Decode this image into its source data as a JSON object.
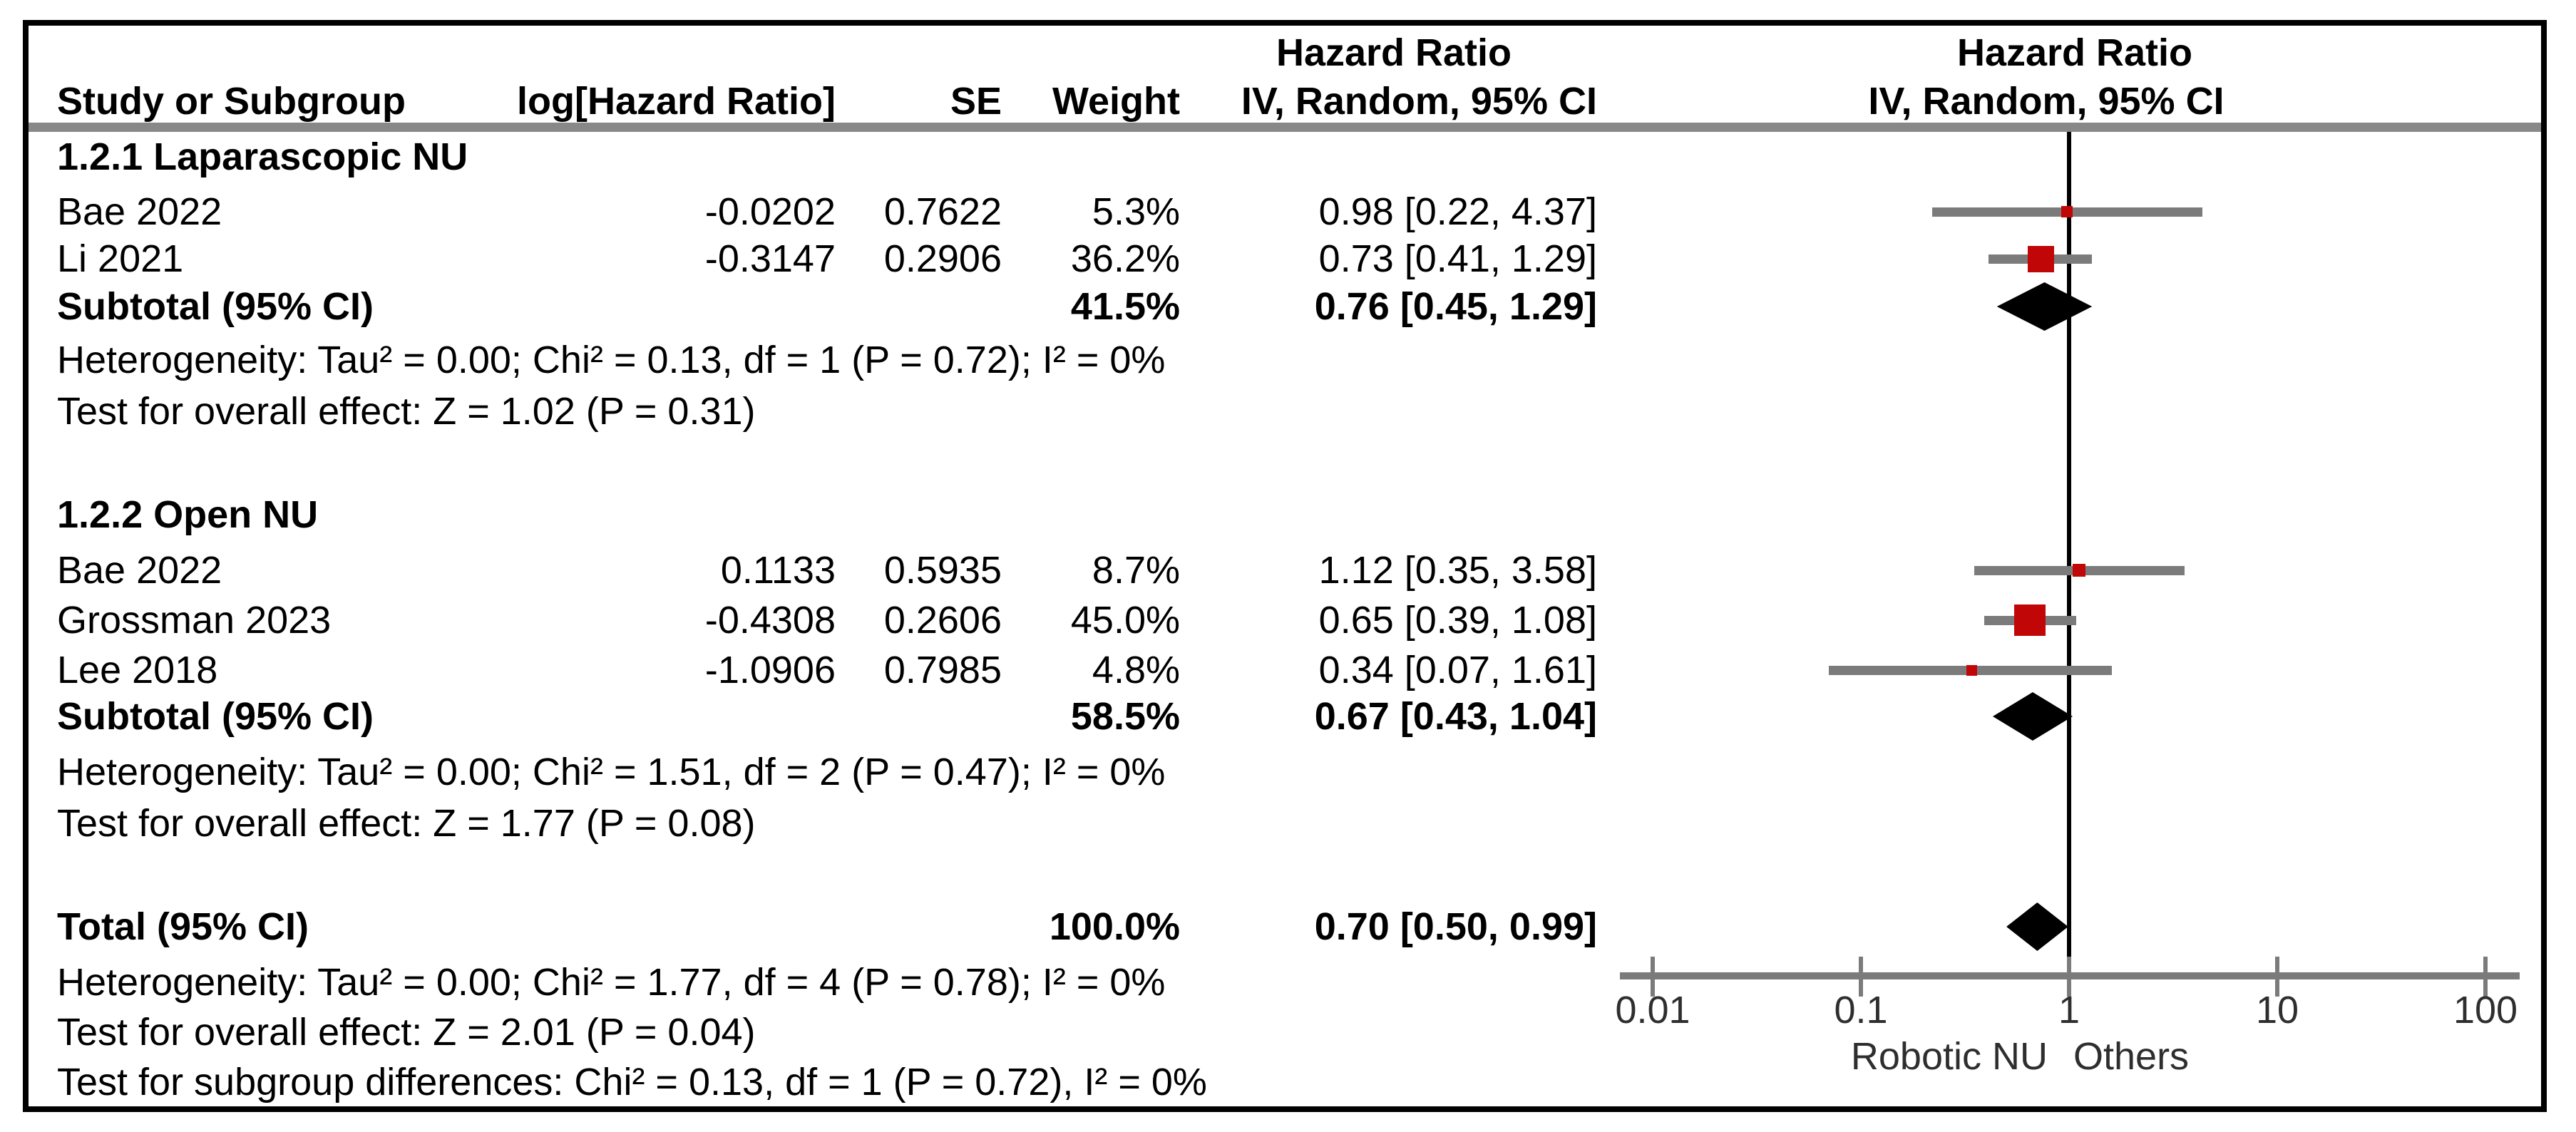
{
  "figure": {
    "header": {
      "stats_effect_title": "Hazard Ratio",
      "plot_effect_title": "Hazard Ratio",
      "col_study": "Study or Subgroup",
      "col_log_hr": "log[Hazard Ratio]",
      "col_se": "SE",
      "col_weight": "Weight",
      "col_ci": "IV, Random, 95% CI",
      "plot_ci": "IV, Random, 95% CI"
    },
    "sections": [
      {
        "title": "1.2.1 Laparascopic NU",
        "studies": [
          {
            "label": "Bae 2022",
            "log_hr": "-0.0202",
            "se": "0.7622",
            "weight": "5.3%",
            "ci": "0.98 [0.22, 4.37]"
          },
          {
            "label": "Li 2021",
            "log_hr": "-0.3147",
            "se": "0.2906",
            "weight": "36.2%",
            "ci": "0.73 [0.41, 1.29]"
          }
        ],
        "subtotal_label": "Subtotal (95% CI)",
        "subtotal_weight": "41.5%",
        "subtotal_ci": "0.76 [0.45, 1.29]",
        "heterogeneity": "Heterogeneity: Tau² = 0.00; Chi² = 0.13, df = 1 (P = 0.72); I² = 0%",
        "overall_effect": "Test for overall effect: Z = 1.02 (P = 0.31)"
      },
      {
        "title": "1.2.2 Open NU",
        "studies": [
          {
            "label": "Bae 2022",
            "log_hr": "0.1133",
            "se": "0.5935",
            "weight": "8.7%",
            "ci": "1.12 [0.35, 3.58]"
          },
          {
            "label": "Grossman 2023",
            "log_hr": "-0.4308",
            "se": "0.2606",
            "weight": "45.0%",
            "ci": "0.65 [0.39, 1.08]"
          },
          {
            "label": "Lee 2018",
            "log_hr": "-1.0906",
            "se": "0.7985",
            "weight": "4.8%",
            "ci": "0.34 [0.07, 1.61]"
          }
        ],
        "subtotal_label": "Subtotal (95% CI)",
        "subtotal_weight": "58.5%",
        "subtotal_ci": "0.67 [0.43, 1.04]",
        "heterogeneity": "Heterogeneity: Tau² = 0.00; Chi² = 1.51, df = 2 (P = 0.47); I² = 0%",
        "overall_effect": "Test for overall effect: Z = 1.77 (P = 0.08)"
      }
    ],
    "total": {
      "label": "Total (95% CI)",
      "weight": "100.0%",
      "ci": "0.70 [0.50, 0.99]",
      "heterogeneity": "Heterogeneity: Tau² = 0.00; Chi² = 1.77, df = 4 (P = 0.78); I² = 0%",
      "overall_effect": "Test for overall effect: Z = 2.01 (P = 0.04)",
      "subgroup_differences": "Test for subgroup differences: Chi² = 0.13, df = 1 (P = 0.72), I² = 0%"
    },
    "axis": {
      "ticks": [
        "0.01",
        "0.1",
        "1",
        "10",
        "100"
      ],
      "favours_left": "Robotic NU",
      "favours_right": "Others"
    },
    "colors": {
      "marker_red": "#c00606",
      "line_gray": "#7b7b7b",
      "rule_gray": "#888888",
      "text_black": "#000000"
    }
  },
  "chart_data": {
    "type": "scatter",
    "subtype": "forest_plot",
    "title": "Hazard Ratio, IV, Random, 95% CI",
    "x_scale": "log10",
    "x_range": [
      0.01,
      100
    ],
    "x_ticks": [
      0.01,
      0.1,
      1,
      10,
      100
    ],
    "reference_line": 1,
    "favours_left": "Robotic NU",
    "favours_right": "Others",
    "series": [
      {
        "name": "1.2.1 Laparascopic NU",
        "points": [
          {
            "study": "Bae 2022",
            "log_hr": -0.0202,
            "se": 0.7622,
            "weight_pct": 5.3,
            "hr": 0.98,
            "ci": [
              0.22,
              4.37
            ]
          },
          {
            "study": "Li 2021",
            "log_hr": -0.3147,
            "se": 0.2906,
            "weight_pct": 36.2,
            "hr": 0.73,
            "ci": [
              0.41,
              1.29
            ]
          }
        ],
        "subtotal": {
          "weight_pct": 41.5,
          "hr": 0.76,
          "ci": [
            0.45,
            1.29
          ],
          "heterogeneity": "Tau² = 0.00; Chi² = 0.13, df = 1 (P = 0.72); I² = 0%",
          "overall_effect": "Z = 1.02 (P = 0.31)"
        }
      },
      {
        "name": "1.2.2 Open NU",
        "points": [
          {
            "study": "Bae 2022",
            "log_hr": 0.1133,
            "se": 0.5935,
            "weight_pct": 8.7,
            "hr": 1.12,
            "ci": [
              0.35,
              3.58
            ]
          },
          {
            "study": "Grossman 2023",
            "log_hr": -0.4308,
            "se": 0.2606,
            "weight_pct": 45.0,
            "hr": 0.65,
            "ci": [
              0.39,
              1.08
            ]
          },
          {
            "study": "Lee 2018",
            "log_hr": -1.0906,
            "se": 0.7985,
            "weight_pct": 4.8,
            "hr": 0.34,
            "ci": [
              0.07,
              1.61
            ]
          }
        ],
        "subtotal": {
          "weight_pct": 58.5,
          "hr": 0.67,
          "ci": [
            0.43,
            1.04
          ],
          "heterogeneity": "Tau² = 0.00; Chi² = 1.51, df = 2 (P = 0.47); I² = 0%",
          "overall_effect": "Z = 1.77 (P = 0.08)"
        }
      }
    ],
    "total": {
      "weight_pct": 100.0,
      "hr": 0.7,
      "ci": [
        0.5,
        0.99
      ],
      "heterogeneity": "Tau² = 0.00; Chi² = 1.77, df = 4 (P = 0.78); I² = 0%",
      "overall_effect": "Z = 2.01 (P = 0.04)"
    },
    "subgroup_differences": "Chi² = 0.13, df = 1 (P = 0.72), I² = 0%"
  }
}
